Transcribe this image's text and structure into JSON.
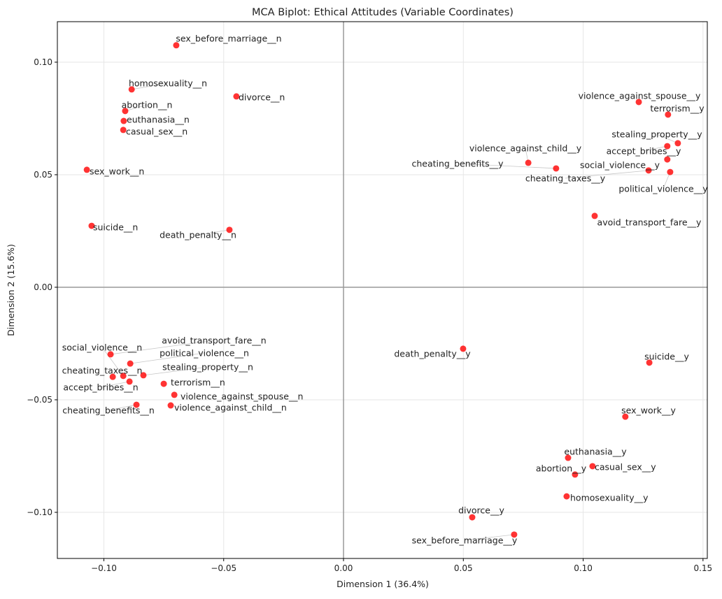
{
  "chart_data": {
    "type": "scatter",
    "title": "MCA Biplot: Ethical Attitudes (Variable Coordinates)",
    "xlabel": "Dimension 1 (36.4%)",
    "ylabel": "Dimension 2 (15.6%)",
    "xlim": [
      -0.1194,
      0.1518
    ],
    "ylim": [
      -0.1205,
      0.118
    ],
    "xticks": [
      -0.1,
      -0.05,
      0.0,
      0.05,
      0.1,
      0.15
    ],
    "xtick_labels": [
      "−0.10",
      "−0.05",
      "0.00",
      "0.05",
      "0.10",
      "0.15"
    ],
    "yticks": [
      -0.1,
      -0.05,
      0.0,
      0.05,
      0.1
    ],
    "ytick_labels": [
      "−0.10",
      "−0.05",
      "0.00",
      "0.05",
      "0.10"
    ],
    "grid": true,
    "point_color": "#ff0000",
    "points": [
      {
        "label": "sex_before_marriage__n",
        "x": -0.0698,
        "y": 0.1075
      },
      {
        "label": "homosexuality__n",
        "x": -0.0884,
        "y": 0.0879
      },
      {
        "label": "divorce__n",
        "x": -0.0447,
        "y": 0.0848
      },
      {
        "label": "abortion__n",
        "x": -0.0911,
        "y": 0.0783
      },
      {
        "label": "euthanasia__n",
        "x": -0.0917,
        "y": 0.0739
      },
      {
        "label": "casual_sex__n",
        "x": -0.0919,
        "y": 0.0699
      },
      {
        "label": "sex_work__n",
        "x": -0.1071,
        "y": 0.0522
      },
      {
        "label": "suicide__n",
        "x": -0.1051,
        "y": 0.0273
      },
      {
        "label": "death_penalty__n",
        "x": -0.0476,
        "y": 0.0255
      },
      {
        "label": "violence_against_spouse__y",
        "x": 0.1232,
        "y": 0.0823
      },
      {
        "label": "terrorism__y",
        "x": 0.1354,
        "y": 0.0767
      },
      {
        "label": "stealing_property__y",
        "x": 0.1395,
        "y": 0.064
      },
      {
        "label": "accept_bribes__y",
        "x": 0.1351,
        "y": 0.0627
      },
      {
        "label": "violence_against_child__y",
        "x": 0.0771,
        "y": 0.0553
      },
      {
        "label": "cheating_benefits__y",
        "x": 0.0887,
        "y": 0.0528
      },
      {
        "label": "cheating_taxes__y",
        "x": 0.1273,
        "y": 0.0519
      },
      {
        "label": "social_violence__y",
        "x": 0.1351,
        "y": 0.0568
      },
      {
        "label": "political_violence__y",
        "x": 0.1363,
        "y": 0.0512
      },
      {
        "label": "avoid_transport_fare__y",
        "x": 0.1048,
        "y": 0.0317
      },
      {
        "label": "death_penalty__y",
        "x": 0.0499,
        "y": -0.0273
      },
      {
        "label": "suicide__y",
        "x": 0.1276,
        "y": -0.0335
      },
      {
        "label": "sex_work__y",
        "x": 0.1176,
        "y": -0.0575
      },
      {
        "label": "euthanasia__y",
        "x": 0.0937,
        "y": -0.0758
      },
      {
        "label": "casual_sex__y",
        "x": 0.1039,
        "y": -0.0795
      },
      {
        "label": "abortion__y",
        "x": 0.0966,
        "y": -0.0832
      },
      {
        "label": "homosexuality__y",
        "x": 0.0931,
        "y": -0.0929
      },
      {
        "label": "divorce__y",
        "x": 0.0537,
        "y": -0.1022
      },
      {
        "label": "sex_before_marriage__y",
        "x": 0.0712,
        "y": -0.1099
      },
      {
        "label": "social_violence__n",
        "x": -0.0919,
        "y": -0.0394
      },
      {
        "label": "avoid_transport_fare__n",
        "x": -0.0972,
        "y": -0.0298
      },
      {
        "label": "political_violence__n",
        "x": -0.089,
        "y": -0.0339
      },
      {
        "label": "stealing_property__n",
        "x": -0.0835,
        "y": -0.0391
      },
      {
        "label": "cheating_taxes__n",
        "x": -0.0963,
        "y": -0.0398
      },
      {
        "label": "accept_bribes__n",
        "x": -0.0893,
        "y": -0.0419
      },
      {
        "label": "terrorism__n",
        "x": -0.075,
        "y": -0.0429
      },
      {
        "label": "violence_against_spouse__n",
        "x": -0.0706,
        "y": -0.0478
      },
      {
        "label": "violence_against_child__n",
        "x": -0.0721,
        "y": -0.0525
      },
      {
        "label": "cheating_benefits__n",
        "x": -0.0864,
        "y": -0.0522
      }
    ]
  }
}
